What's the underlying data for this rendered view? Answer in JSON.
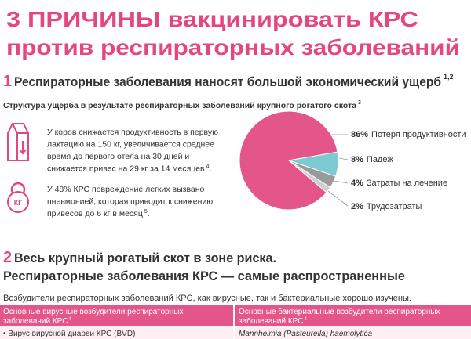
{
  "title": [
    "3 ПРИЧИНЫ вакцинировать КРС",
    "против респираторных заболеваний"
  ],
  "section1": {
    "number": "1",
    "heading": "Респираторные заболевания наносят большой экономический ущерб",
    "ref": "1,2",
    "subtitle": "Структура ущерба в результате респираторных заболеваний крупного рогатого скота",
    "subtitle_ref": "3",
    "facts": [
      {
        "lines": [
          "У коров снижается продуктивность в первую",
          "лактацию на 150 кг, увеличивается среднее",
          "время до первого отела на 30 дней и",
          "снижается привес на 29 кг за 14 месяцев"
        ],
        "ref": "4",
        "suffix": "."
      },
      {
        "lines": [
          "У 48% КРС повреждение легких вызвано",
          "пневмонией, которая приводит к снижению",
          "привесов до 6 кг в месяц"
        ],
        "ref": "5",
        "suffix": "."
      }
    ],
    "icon_label": "КГ"
  },
  "chart_data": {
    "type": "pie",
    "categories": [
      "Потеря продуктивности",
      "Падеж",
      "Затраты на лечение",
      "Трудозатраты"
    ],
    "values": [
      86,
      8,
      4,
      2
    ],
    "value_labels": [
      "86%",
      "8%",
      "4%",
      "2%"
    ],
    "colors": [
      "#e4558a",
      "#7ccbd3",
      "#9a9a9a",
      "#cfcfcf"
    ]
  },
  "section2": {
    "number": "2",
    "heading": [
      "Весь крупный рогатый скот в зоне риска.",
      "Респираторные заболевания КРС — самые распространенные"
    ],
    "intro": "Возбудители респираторных заболеваний КРС, как вирусные, так и бактериальные хорошо изучены."
  },
  "table": {
    "headers": [
      {
        "lines": [
          "Основные вирусные возбудители респираторных",
          "заболеваний КРС"
        ],
        "ref": "4"
      },
      {
        "lines": [
          "Основные бактериальные возбудители респираторных",
          "заболеваний КРС"
        ],
        "ref": "4"
      }
    ],
    "rows": [
      [
        "• Вирус вирусной диареи КРС (BVD)",
        "Mannheimia (Pasteurella) haemolytica"
      ]
    ]
  }
}
